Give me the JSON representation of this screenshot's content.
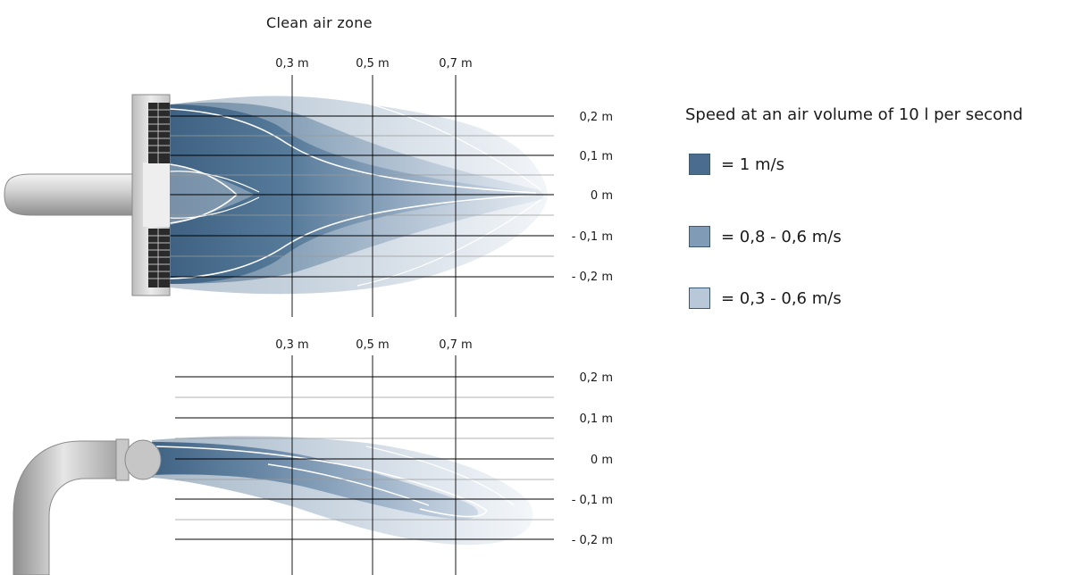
{
  "title": "Clean air zone",
  "legend": {
    "title": "Speed at an air volume of 10 l per second",
    "items": [
      {
        "label": "= 1 m/s",
        "color": "#4a6d8e"
      },
      {
        "label": "= 0,8 - 0,6 m/s",
        "color": "#7f9bb6"
      },
      {
        "label": "= 0,3 - 0,6 m/s",
        "color": "#b8c8d8"
      }
    ]
  },
  "top_view": {
    "distance_labels": [
      "0,3 m",
      "0,5 m",
      "0,7 m"
    ],
    "height_labels": [
      "0,2 m",
      "0,1 m",
      "0 m",
      "- 0,1 m",
      "- 0,2 m"
    ]
  },
  "side_view": {
    "distance_labels": [
      "0,3 m",
      "0,5 m",
      "0,7 m"
    ],
    "height_labels": [
      "0,2 m",
      "0,1 m",
      "0 m",
      "- 0,1 m",
      "- 0,2 m"
    ]
  },
  "colors": {
    "plume_dark": "#3f6283",
    "plume_light": "#dbe4ee",
    "grid_line": "#000000",
    "grid_minor": "#9a9a9a"
  }
}
